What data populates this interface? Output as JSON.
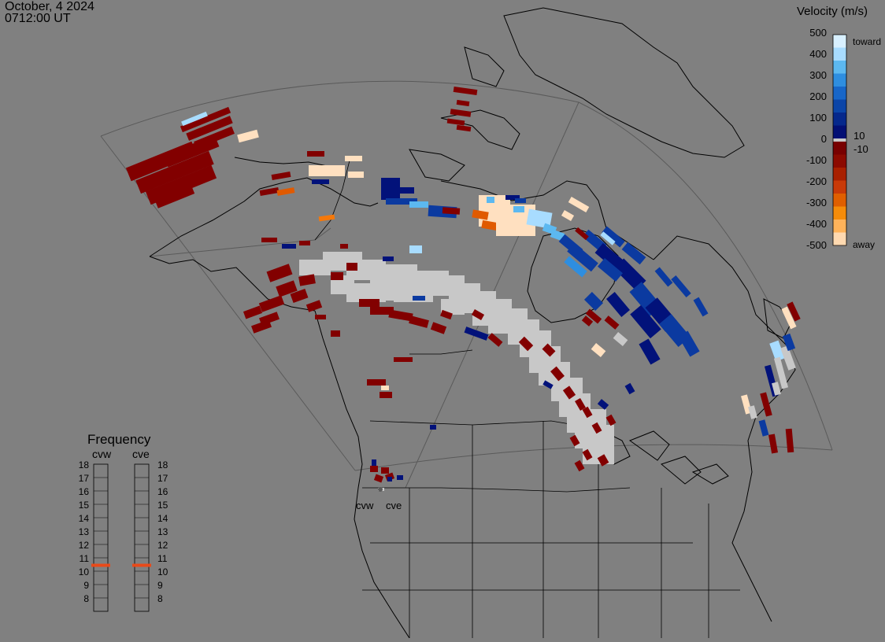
{
  "header": {
    "date": "October, 4 2024",
    "time": "0712:00 UT"
  },
  "velocity_scale": {
    "title": "Velocity (m/s)",
    "ticks": [
      "500",
      "400",
      "300",
      "200",
      "100",
      "10",
      "0",
      "-10",
      "-100",
      "-200",
      "-300",
      "-400",
      "-500"
    ],
    "toward_label": "toward",
    "away_label": "away",
    "toward_colors": [
      "#d8f0ff",
      "#a8dcff",
      "#5cb8f0",
      "#2e8ee0",
      "#1766c8",
      "#0b45a8",
      "#05288c",
      "#020f74"
    ],
    "away_colors": [
      "#780000",
      "#8c0a00",
      "#a82000",
      "#c83a08",
      "#e05f00",
      "#f58c0a",
      "#ffb35a",
      "#ffd9b0"
    ],
    "zero_color": "#c8c8c8"
  },
  "frequency_panel": {
    "title": "Frequency",
    "radars": [
      {
        "code": "cvw",
        "level_mhz": 11
      },
      {
        "code": "cve",
        "level_mhz": 11
      }
    ],
    "levels": [
      "18",
      "17",
      "16",
      "15",
      "14",
      "13",
      "12",
      "11",
      "10",
      "9",
      "8"
    ],
    "active_color": "#e84a1a"
  },
  "map": {
    "radar_labels": [
      "cvw",
      "cve"
    ],
    "colors": {
      "background": "#808080",
      "coast": "#000000",
      "fov": "#5a5a5a",
      "ground_scatter": "#c8c8c8"
    }
  }
}
